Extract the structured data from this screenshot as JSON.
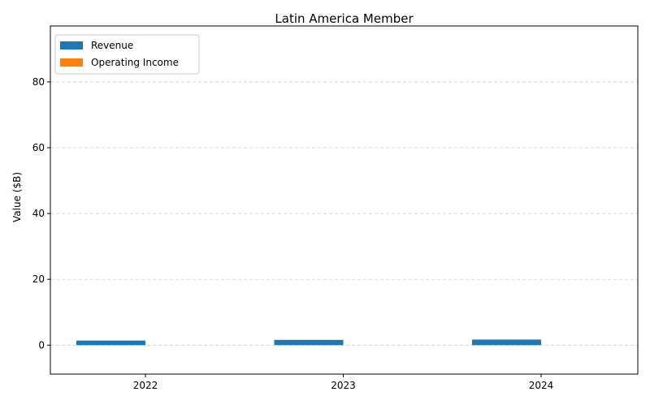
{
  "chart_data": {
    "type": "bar",
    "title": "Latin America Member",
    "xlabel": "",
    "ylabel": "Value ($B)",
    "categories": [
      "2022",
      "2023",
      "2024"
    ],
    "series": [
      {
        "name": "Revenue",
        "values": [
          1.4,
          1.6,
          1.7
        ],
        "color": "#1f77b4"
      },
      {
        "name": "Operating Income",
        "values": [
          0.0,
          0.0,
          0.0
        ],
        "color": "#ff7f0e"
      }
    ],
    "ylim": [
      -8.8,
      97
    ],
    "yticks": [
      0,
      20,
      40,
      60,
      80
    ],
    "grid": "y-dashed",
    "legend_position": "top-left"
  }
}
